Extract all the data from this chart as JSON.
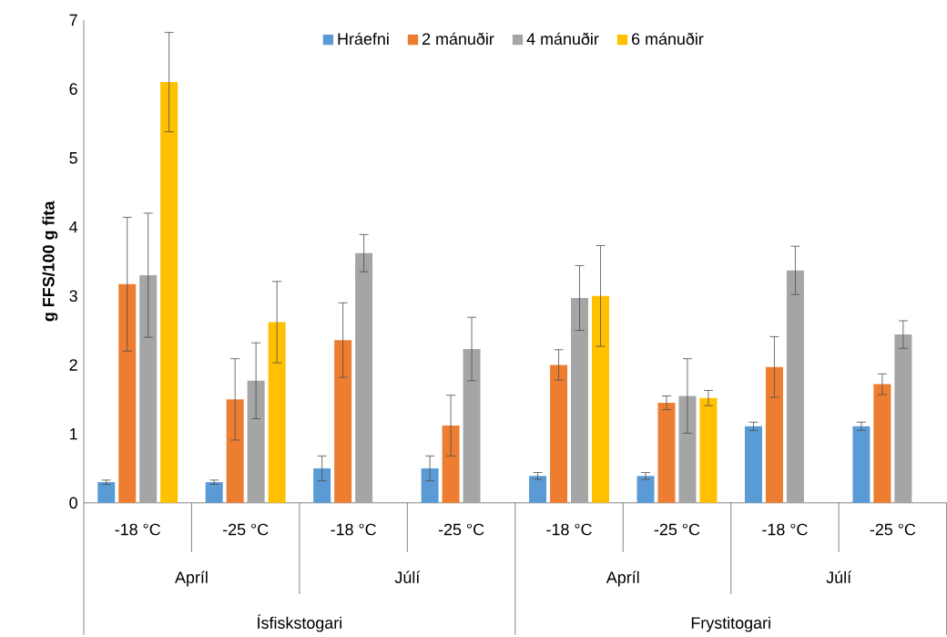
{
  "chart_data": {
    "type": "bar",
    "ylabel": "g FFS/100 g fita",
    "categories": [
      "-18 °C",
      "-25 °C",
      "-18 °C",
      "-25 °C",
      "-18 °C",
      "-25 °C",
      "-18 °C",
      "-25 °C"
    ],
    "series": [
      {
        "name": "Hráefni",
        "color": "#5b9bd5",
        "values": [
          0.3,
          0.3,
          0.5,
          0.5,
          0.39,
          0.39,
          1.11,
          1.11
        ],
        "errors": [
          0.03,
          0.03,
          0.18,
          0.18,
          0.05,
          0.05,
          0.06,
          0.06
        ]
      },
      {
        "name": "2 mánuðir",
        "color": "#ed7d31",
        "values": [
          3.17,
          1.5,
          2.36,
          1.12,
          2.0,
          1.45,
          1.97,
          1.72
        ],
        "errors": [
          0.97,
          0.59,
          0.54,
          0.44,
          0.22,
          0.1,
          0.44,
          0.15
        ]
      },
      {
        "name": "4 mánuðir",
        "color": "#a5a5a5",
        "values": [
          3.3,
          1.77,
          3.62,
          2.23,
          2.97,
          1.55,
          3.37,
          2.44
        ],
        "errors": [
          0.9,
          0.55,
          0.27,
          0.46,
          0.47,
          0.54,
          0.35,
          0.2
        ]
      },
      {
        "name": "6 mánuðir",
        "color": "#ffc000",
        "values": [
          6.1,
          2.62,
          null,
          null,
          3.0,
          1.52,
          null,
          null
        ],
        "errors": [
          0.72,
          0.59,
          null,
          null,
          0.73,
          0.11,
          null,
          null
        ]
      }
    ],
    "annotations": [
      "Apríl",
      "Júlí",
      "Apríl",
      "Júlí",
      "Ísfiskstogari",
      "Frystitogari"
    ],
    "ylim": [
      0,
      7
    ],
    "yticks": [
      0,
      1,
      2,
      3,
      4,
      5,
      6,
      7
    ],
    "grid": false,
    "legend": "top"
  }
}
